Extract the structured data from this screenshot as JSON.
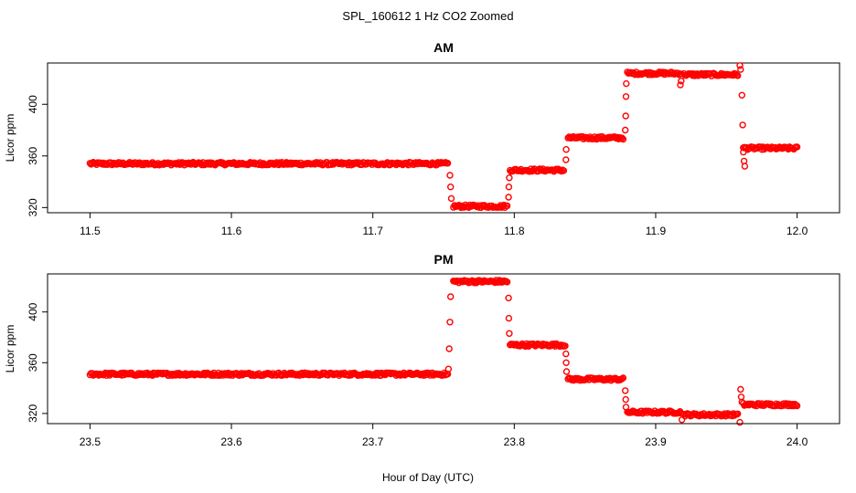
{
  "figure_title": "SPL_160612 1 Hz CO2 Zoomed",
  "xlabel": "Hour of Day (UTC)",
  "point_color": "#ff0000",
  "chart_data": [
    {
      "type": "scatter",
      "title": "AM",
      "ylabel": "Licor ppm",
      "xlim": [
        11.47,
        12.03
      ],
      "ylim": [
        316,
        432
      ],
      "xticks": [
        11.5,
        11.6,
        11.7,
        11.8,
        11.9,
        12.0
      ],
      "xtick_labels": [
        "11.5",
        "11.6",
        "11.7",
        "11.8",
        "11.9",
        "12.0"
      ],
      "yticks": [
        320,
        360,
        400
      ],
      "ytick_labels": [
        "320",
        "360",
        "400"
      ],
      "grid": false,
      "segments": [
        {
          "x": [
            11.5,
            11.753
          ],
          "y": 354
        },
        {
          "x": [
            11.757,
            11.795
          ],
          "y": 321
        },
        {
          "x": [
            11.797,
            11.835
          ],
          "y": 349
        },
        {
          "x": [
            11.838,
            11.877
          ],
          "y": 374
        },
        {
          "x": [
            11.88,
            11.918
          ],
          "y": 424
        },
        {
          "x": [
            11.92,
            11.958
          ],
          "y": 423
        },
        {
          "x": [
            11.962,
            12.0
          ],
          "y": 366
        }
      ],
      "transitions": [
        {
          "x": 11.7545,
          "y": 345
        },
        {
          "x": 11.755,
          "y": 336
        },
        {
          "x": 11.7555,
          "y": 327
        },
        {
          "x": 11.796,
          "y": 328
        },
        {
          "x": 11.7962,
          "y": 336
        },
        {
          "x": 11.7965,
          "y": 343
        },
        {
          "x": 11.8365,
          "y": 357
        },
        {
          "x": 11.8367,
          "y": 365
        },
        {
          "x": 11.8785,
          "y": 380
        },
        {
          "x": 11.8788,
          "y": 391
        },
        {
          "x": 11.879,
          "y": 406
        },
        {
          "x": 11.8792,
          "y": 416
        },
        {
          "x": 11.9175,
          "y": 415
        },
        {
          "x": 11.918,
          "y": 418
        },
        {
          "x": 11.9595,
          "y": 430
        },
        {
          "x": 11.96,
          "y": 427
        },
        {
          "x": 11.961,
          "y": 407
        },
        {
          "x": 11.9615,
          "y": 384
        },
        {
          "x": 11.962,
          "y": 363
        },
        {
          "x": 11.9625,
          "y": 356
        },
        {
          "x": 11.963,
          "y": 352
        }
      ]
    },
    {
      "type": "scatter",
      "title": "PM",
      "ylabel": "Licor ppm",
      "xlim": [
        23.47,
        24.03
      ],
      "ylim": [
        312,
        430
      ],
      "xticks": [
        23.5,
        23.6,
        23.7,
        23.8,
        23.9,
        24.0
      ],
      "xtick_labels": [
        "23.5",
        "23.6",
        "23.7",
        "23.8",
        "23.9",
        "24.0"
      ],
      "yticks": [
        320,
        360,
        400
      ],
      "ytick_labels": [
        "320",
        "360",
        "400"
      ],
      "grid": false,
      "segments": [
        {
          "x": [
            23.5,
            23.753
          ],
          "y": 351
        },
        {
          "x": [
            23.757,
            23.795
          ],
          "y": 424
        },
        {
          "x": [
            23.797,
            23.836
          ],
          "y": 374
        },
        {
          "x": [
            23.838,
            23.877
          ],
          "y": 347
        },
        {
          "x": [
            23.88,
            23.918
          ],
          "y": 321
        },
        {
          "x": [
            23.92,
            23.958
          ],
          "y": 319
        },
        {
          "x": [
            23.962,
            24.0
          ],
          "y": 327
        }
      ],
      "transitions": [
        {
          "x": 23.7535,
          "y": 355
        },
        {
          "x": 23.754,
          "y": 371
        },
        {
          "x": 23.7545,
          "y": 392
        },
        {
          "x": 23.755,
          "y": 412
        },
        {
          "x": 23.796,
          "y": 411
        },
        {
          "x": 23.7962,
          "y": 395
        },
        {
          "x": 23.7965,
          "y": 383
        },
        {
          "x": 23.8365,
          "y": 367
        },
        {
          "x": 23.8367,
          "y": 360
        },
        {
          "x": 23.837,
          "y": 353
        },
        {
          "x": 23.8785,
          "y": 338
        },
        {
          "x": 23.8788,
          "y": 331
        },
        {
          "x": 23.879,
          "y": 325
        },
        {
          "x": 23.9185,
          "y": 315
        },
        {
          "x": 23.9595,
          "y": 313
        },
        {
          "x": 23.96,
          "y": 339
        },
        {
          "x": 23.9605,
          "y": 333
        },
        {
          "x": 23.961,
          "y": 329
        }
      ]
    }
  ]
}
